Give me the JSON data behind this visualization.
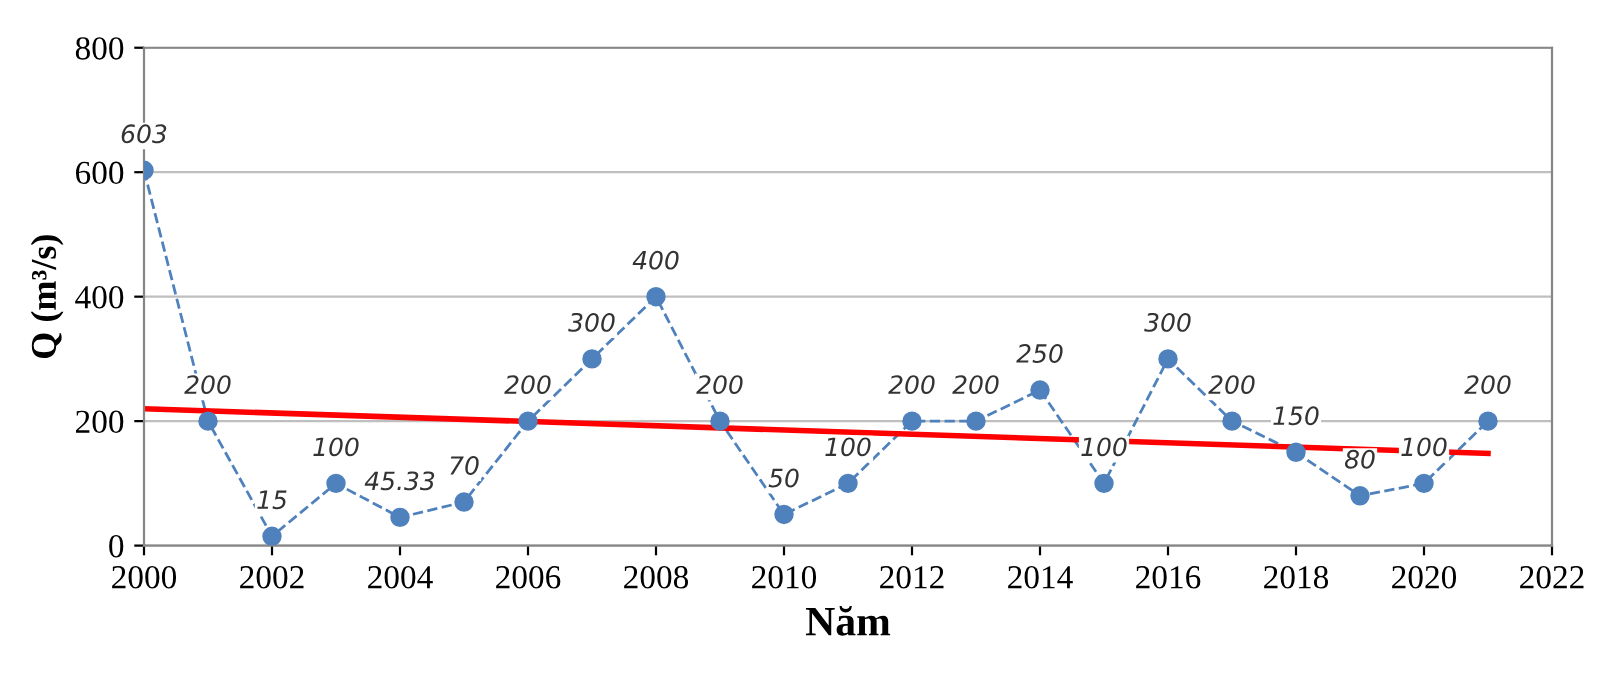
{
  "chart_data": {
    "type": "line",
    "xlabel": "Năm",
    "ylabel": "Q (m³/s)",
    "xlim": [
      2000,
      2022
    ],
    "xticks": [
      2000,
      2002,
      2004,
      2006,
      2008,
      2010,
      2012,
      2014,
      2016,
      2018,
      2020,
      2022
    ],
    "ylim": [
      0,
      800
    ],
    "yticks": [
      0,
      200,
      400,
      600,
      800
    ],
    "grid": "y",
    "series": [
      {
        "color": "#4f81bd",
        "marker": "circle",
        "line_style": "dashed",
        "x": [
          2000,
          2001,
          2002,
          2003,
          2004,
          2005,
          2006,
          2007,
          2008,
          2009,
          2010,
          2011,
          2012,
          2013,
          2014,
          2015,
          2016,
          2017,
          2018,
          2019,
          2020,
          2021
        ],
        "values": [
          603,
          200,
          15,
          100,
          45.33,
          70,
          200,
          300,
          400,
          200,
          50,
          100,
          200,
          200,
          250,
          100,
          300,
          200,
          150,
          80,
          100,
          200
        ],
        "value_labels": [
          "603",
          "200",
          "15",
          "100",
          "45.33",
          "70",
          "200",
          "300",
          "400",
          "200",
          "50",
          "100",
          "200",
          "200",
          "250",
          "100",
          "300",
          "200",
          "150",
          "80",
          "100",
          "200"
        ]
      },
      {
        "type": "line",
        "color": "#ff0000",
        "marker": "none",
        "line_style": "solid",
        "x": [
          2000,
          2021
        ],
        "values": [
          220,
          148
        ]
      }
    ]
  }
}
